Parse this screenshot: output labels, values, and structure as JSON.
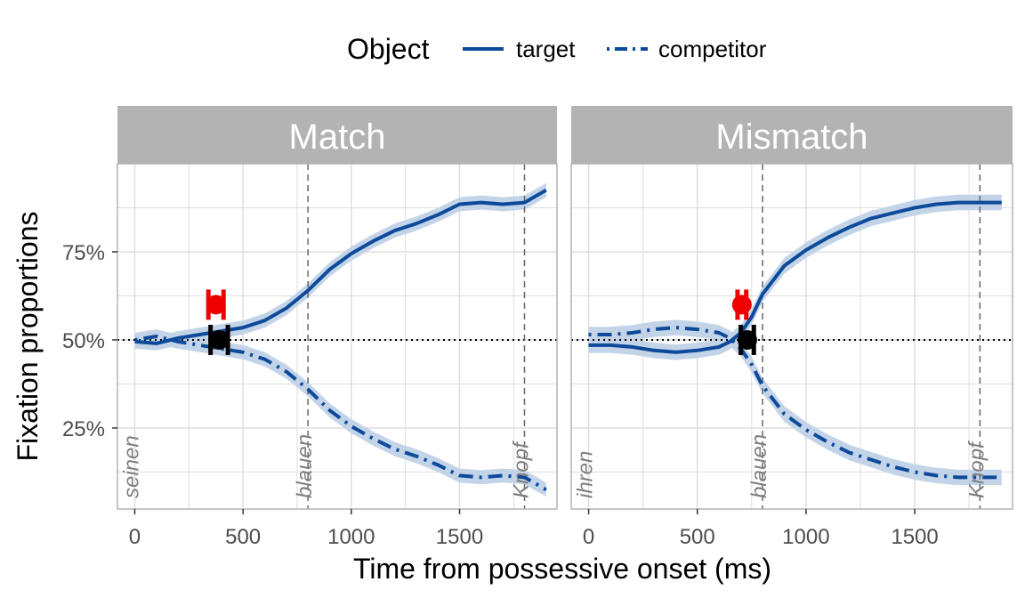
{
  "legend": {
    "title": "Object",
    "items": [
      {
        "label": "target",
        "dash": "solid"
      },
      {
        "label": "competitor",
        "dash": "dotdash"
      }
    ]
  },
  "colors": {
    "line": "#0D4A9A",
    "ribbon": "#C3D4E8",
    "strip": "#B3B3B3",
    "grid": "#DEDEDE",
    "panel_border": "#B3B3B3",
    "red_point": "#EE0000",
    "black_point": "#000000",
    "word_text": "#7F7F7F"
  },
  "axes": {
    "x_title": "Time from possessive onset (ms)",
    "y_title": "Fixation proportions"
  },
  "chart_data": {
    "type": "line",
    "facets": [
      "Match",
      "Mismatch"
    ],
    "xlabel": "Time from possessive onset (ms)",
    "ylabel": "Fixation proportions",
    "xlim": [
      -80,
      1950
    ],
    "ylim": [
      0.02,
      1.0
    ],
    "x_ticks": [
      0,
      500,
      1000,
      1500
    ],
    "y_ticks": [
      0.25,
      0.5,
      0.75
    ],
    "y_tick_labels": [
      "25%",
      "50%",
      "75%"
    ],
    "hline": 0.5,
    "grid": true,
    "legend_position": "top",
    "panels": [
      {
        "facet": "Match",
        "words": [
          {
            "text": "seinen",
            "x": 0,
            "line": false
          },
          {
            "text": "blauen",
            "x": 800,
            "line": true
          },
          {
            "text": "Knopf",
            "x": 1800,
            "line": true
          }
        ],
        "series": [
          {
            "name": "target",
            "x": [
              0,
              100,
              200,
              300,
              400,
              500,
              600,
              700,
              800,
              900,
              1000,
              1100,
              1200,
              1300,
              1400,
              1500,
              1600,
              1700,
              1800,
              1900
            ],
            "y": [
              0.495,
              0.49,
              0.505,
              0.515,
              0.525,
              0.535,
              0.555,
              0.59,
              0.64,
              0.7,
              0.745,
              0.78,
              0.81,
              0.83,
              0.855,
              0.885,
              0.89,
              0.885,
              0.89,
              0.925
            ],
            "band": 0.02
          },
          {
            "name": "competitor",
            "x": [
              0,
              100,
              200,
              300,
              400,
              500,
              600,
              700,
              800,
              900,
              1000,
              1100,
              1200,
              1300,
              1400,
              1500,
              1600,
              1700,
              1800,
              1900
            ],
            "y": [
              0.5,
              0.51,
              0.495,
              0.485,
              0.475,
              0.465,
              0.445,
              0.41,
              0.36,
              0.3,
              0.255,
              0.22,
              0.19,
              0.17,
              0.145,
              0.115,
              0.11,
              0.115,
              0.11,
              0.075
            ],
            "band": 0.02
          }
        ],
        "points": [
          {
            "label": "red",
            "x": 375,
            "y": 0.6,
            "xmin": 340,
            "xmax": 410
          },
          {
            "label": "black",
            "x": 390,
            "y": 0.5,
            "xmin": 350,
            "xmax": 430
          }
        ]
      },
      {
        "facet": "Mismatch",
        "words": [
          {
            "text": "ihren",
            "x": 0,
            "line": false
          },
          {
            "text": "blauen",
            "x": 800,
            "line": true
          },
          {
            "text": "Knopf",
            "x": 1800,
            "line": true
          }
        ],
        "series": [
          {
            "name": "target",
            "x": [
              0,
              100,
              200,
              300,
              400,
              500,
              600,
              650,
              700,
              750,
              800,
              900,
              1000,
              1100,
              1200,
              1300,
              1400,
              1500,
              1600,
              1700,
              1800,
              1900
            ],
            "y": [
              0.485,
              0.485,
              0.48,
              0.47,
              0.465,
              0.47,
              0.48,
              0.495,
              0.52,
              0.565,
              0.63,
              0.71,
              0.755,
              0.79,
              0.82,
              0.845,
              0.86,
              0.875,
              0.885,
              0.89,
              0.89,
              0.89
            ],
            "band": 0.022
          },
          {
            "name": "competitor",
            "x": [
              0,
              100,
              200,
              300,
              400,
              500,
              600,
              650,
              700,
              750,
              800,
              900,
              1000,
              1100,
              1200,
              1300,
              1400,
              1500,
              1600,
              1700,
              1800,
              1900
            ],
            "y": [
              0.515,
              0.515,
              0.52,
              0.53,
              0.535,
              0.53,
              0.52,
              0.505,
              0.475,
              0.43,
              0.37,
              0.29,
              0.245,
              0.21,
              0.18,
              0.16,
              0.14,
              0.125,
              0.115,
              0.11,
              0.11,
              0.11
            ],
            "band": 0.022
          }
        ],
        "points": [
          {
            "label": "red",
            "x": 705,
            "y": 0.6,
            "xmin": 685,
            "xmax": 725
          },
          {
            "label": "black",
            "x": 730,
            "y": 0.5,
            "xmin": 700,
            "xmax": 760
          }
        ]
      }
    ]
  }
}
